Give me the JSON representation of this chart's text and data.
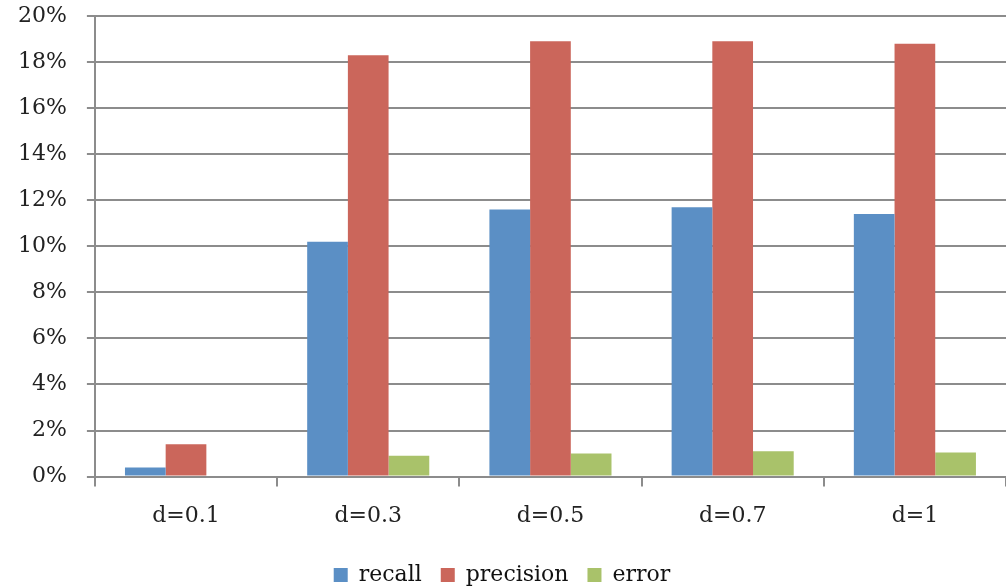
{
  "chart_data": {
    "type": "bar",
    "categories": [
      "d=0.1",
      "d=0.3",
      "d=0.5",
      "d=0.7",
      "d=1"
    ],
    "series": [
      {
        "name": "recall",
        "color": "#5b8fc5",
        "values": [
          0.4,
          10.2,
          11.6,
          11.7,
          11.4
        ]
      },
      {
        "name": "precision",
        "color": "#cb665b",
        "values": [
          1.4,
          18.3,
          18.9,
          18.9,
          18.8
        ]
      },
      {
        "name": "error",
        "color": "#a9c26a",
        "values": [
          0,
          0.9,
          1.0,
          1.1,
          1.05
        ]
      }
    ],
    "ylim": [
      0,
      20
    ],
    "yticks": [
      {
        "value": 0,
        "label": "0%"
      },
      {
        "value": 2,
        "label": "2%"
      },
      {
        "value": 4,
        "label": "4%"
      },
      {
        "value": 6,
        "label": "6%"
      },
      {
        "value": 8,
        "label": "8%"
      },
      {
        "value": 10,
        "label": "10%"
      },
      {
        "value": 12,
        "label": "12%"
      },
      {
        "value": 14,
        "label": "14%"
      },
      {
        "value": 16,
        "label": "16%"
      },
      {
        "value": 18,
        "label": "18%"
      },
      {
        "value": 20,
        "label": "20%"
      }
    ],
    "grid": "y",
    "legend": "bottom"
  }
}
